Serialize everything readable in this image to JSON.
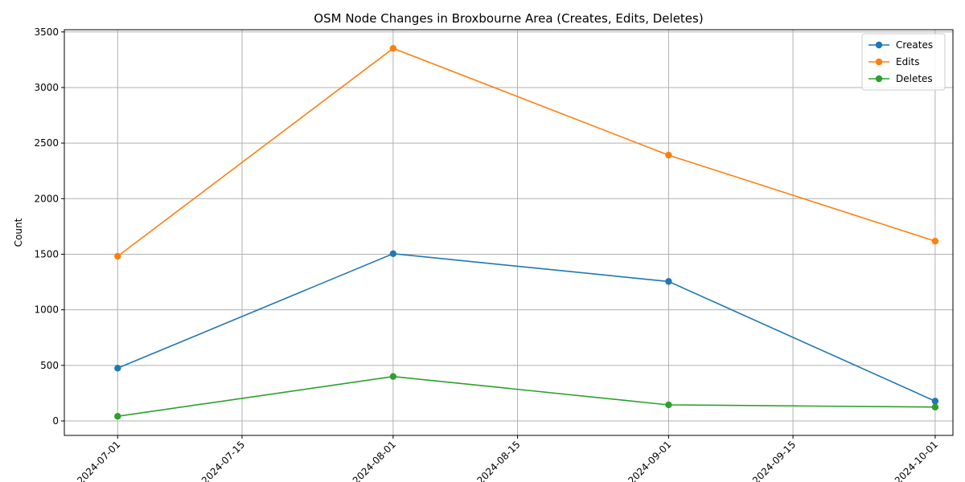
{
  "chart_data": {
    "type": "line",
    "title": "OSM Node Changes in Broxbourne Area (Creates, Edits, Deletes)",
    "xlabel": "",
    "ylabel": "Count",
    "x": [
      "2024-07-01",
      "2024-08-01",
      "2024-09-01",
      "2024-10-01"
    ],
    "x_ticks": [
      "2024-07-01",
      "2024-07-15",
      "2024-08-01",
      "2024-08-15",
      "2024-09-01",
      "2024-09-15",
      "2024-10-01"
    ],
    "y_ticks": [
      0,
      500,
      1000,
      1500,
      2000,
      2500,
      3000,
      3500
    ],
    "ylim": [
      -130,
      3520
    ],
    "xlim": [
      "2024-06-25",
      "2024-10-03"
    ],
    "grid": true,
    "legend_position": "top-right",
    "series": [
      {
        "name": "Creates",
        "color": "#1f77b4",
        "values": [
          475,
          1505,
          1255,
          178
        ]
      },
      {
        "name": "Edits",
        "color": "#ff7f0e",
        "values": [
          1482,
          3352,
          2392,
          1618
        ]
      },
      {
        "name": "Deletes",
        "color": "#2ca02c",
        "values": [
          42,
          400,
          145,
          125
        ]
      }
    ]
  }
}
